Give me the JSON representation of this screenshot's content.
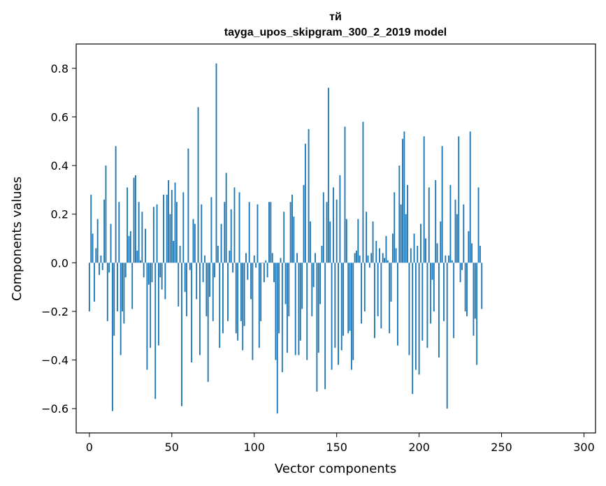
{
  "chart_data": {
    "type": "bar",
    "title_line1": "тй",
    "title_line2": "tayga_upos_skipgram_300_2_2019 model",
    "xlabel": "Vector components",
    "ylabel": "Components values",
    "xlim": [
      -8,
      307
    ],
    "ylim": [
      -0.7,
      0.9
    ],
    "xticks": [
      0,
      50,
      100,
      150,
      200,
      250,
      300
    ],
    "xtick_labels": [
      "0",
      "50",
      "100",
      "150",
      "200",
      "250",
      "300"
    ],
    "yticks": [
      -0.6,
      -0.4,
      -0.2,
      0.0,
      0.2,
      0.4,
      0.6,
      0.8
    ],
    "ytick_labels": [
      "−0.6",
      "−0.4",
      "−0.2",
      "0.0",
      "0.2",
      "0.4",
      "0.6",
      "0.8"
    ],
    "bar_color": "#1f77b4",
    "values": [
      -0.2,
      0.28,
      0.12,
      -0.16,
      0.06,
      0.18,
      -0.05,
      0.03,
      -0.03,
      0.26,
      0.4,
      -0.24,
      -0.04,
      0.16,
      -0.61,
      -0.3,
      0.48,
      -0.2,
      0.25,
      -0.38,
      -0.2,
      -0.25,
      -0.06,
      0.31,
      0.11,
      0.13,
      -0.19,
      0.35,
      0.36,
      0.05,
      0.25,
      0.01,
      0.21,
      -0.06,
      0.14,
      -0.44,
      -0.09,
      -0.35,
      -0.08,
      0.23,
      -0.56,
      0.24,
      -0.34,
      -0.06,
      -0.11,
      0.28,
      -0.15,
      0.28,
      0.34,
      0.2,
      0.3,
      0.09,
      0.33,
      0.25,
      -0.18,
      0.07,
      -0.59,
      0.29,
      -0.12,
      -0.22,
      0.47,
      -0.03,
      -0.41,
      0.18,
      0.16,
      -0.15,
      0.64,
      -0.38,
      0.24,
      -0.08,
      0.03,
      -0.22,
      -0.49,
      -0.14,
      0.27,
      -0.24,
      -0.06,
      0.82,
      0.07,
      -0.35,
      0.16,
      -0.29,
      0.25,
      0.37,
      -0.24,
      0.05,
      0.22,
      -0.04,
      0.31,
      -0.29,
      -0.32,
      0.29,
      -0.24,
      -0.36,
      -0.26,
      0.04,
      -0.07,
      0.25,
      -0.15,
      -0.4,
      0.03,
      -0.02,
      0.24,
      -0.35,
      -0.24,
      0.0,
      -0.08,
      0.01,
      -0.06,
      0.25,
      0.25,
      0.04,
      -0.08,
      -0.4,
      -0.62,
      -0.29,
      0.02,
      -0.45,
      0.21,
      -0.17,
      -0.37,
      -0.22,
      0.25,
      0.28,
      0.19,
      -0.38,
      0.04,
      -0.38,
      -0.32,
      -0.19,
      0.32,
      0.49,
      -0.4,
      0.55,
      0.17,
      -0.22,
      -0.1,
      0.04,
      -0.53,
      -0.37,
      -0.17,
      0.07,
      0.29,
      -0.52,
      0.25,
      0.72,
      0.17,
      -0.44,
      0.31,
      -0.35,
      0.26,
      -0.42,
      0.36,
      -0.36,
      -0.3,
      0.56,
      0.18,
      -0.29,
      -0.28,
      -0.44,
      -0.4,
      0.04,
      0.05,
      0.18,
      0.03,
      -0.25,
      0.58,
      -0.2,
      0.21,
      0.03,
      -0.02,
      0.04,
      0.17,
      -0.31,
      0.09,
      -0.22,
      0.06,
      -0.27,
      0.04,
      0.02,
      0.11,
      0.01,
      -0.29,
      -0.16,
      0.12,
      0.29,
      0.06,
      -0.34,
      0.4,
      0.24,
      0.51,
      0.54,
      0.2,
      0.32,
      -0.38,
      0.06,
      -0.54,
      0.12,
      -0.44,
      0.07,
      -0.46,
      0.16,
      -0.32,
      0.52,
      0.1,
      -0.35,
      0.31,
      -0.25,
      -0.07,
      -0.2,
      0.34,
      0.08,
      -0.39,
      0.17,
      0.48,
      -0.24,
      0.03,
      -0.6,
      0.03,
      0.32,
      0.01,
      -0.31,
      0.26,
      0.2,
      0.52,
      -0.08,
      -0.03,
      0.24,
      -0.2,
      -0.22,
      0.13,
      0.54,
      0.08,
      -0.3,
      -0.23,
      -0.42,
      0.31,
      0.07,
      -0.19
    ]
  }
}
